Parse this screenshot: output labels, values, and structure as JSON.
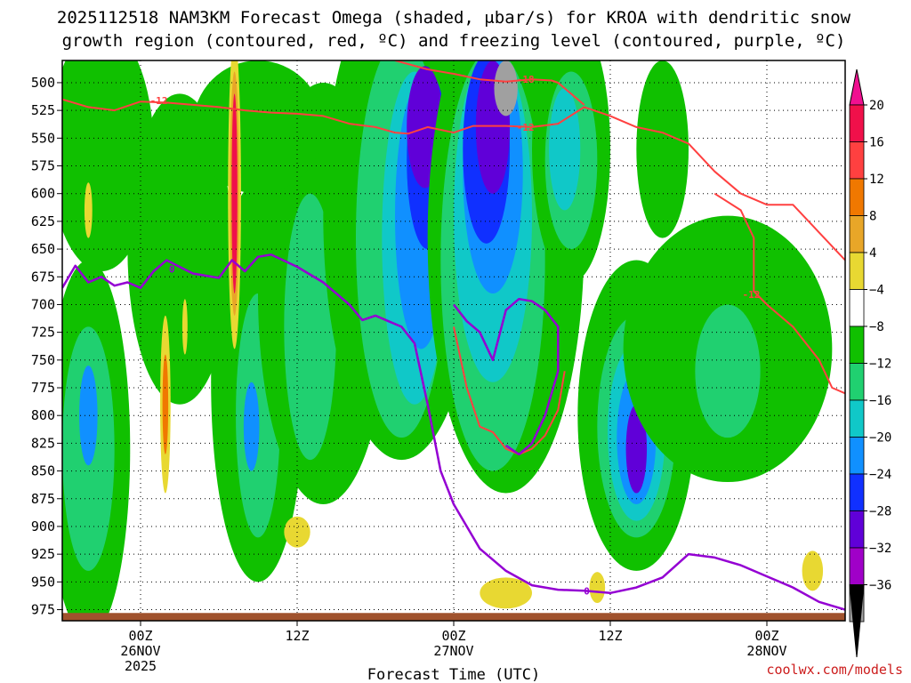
{
  "chart_data": {
    "type": "heatmap",
    "title_lines": [
      "2025112518 NAM3KM Forecast Omega (shaded, μbar/s) for KROA with dendritic snow",
      "growth region (contoured, red, ºC) and freezing level (contoured, purple, ºC)"
    ],
    "xlabel": "Forecast Time (UTC)",
    "credit": "coolwx.com/models",
    "x_ticks": [
      {
        "hour": 0,
        "lines": [
          "00Z",
          "26NOV",
          "2025"
        ]
      },
      {
        "hour": 12,
        "lines": [
          "12Z"
        ]
      },
      {
        "hour": 24,
        "lines": [
          "00Z",
          "27NOV"
        ]
      },
      {
        "hour": 36,
        "lines": [
          "12Z"
        ]
      },
      {
        "hour": 48,
        "lines": [
          "00Z",
          "28NOV"
        ]
      }
    ],
    "xlim_hours": [
      -6,
      54
    ],
    "y_levels": [
      500,
      525,
      550,
      575,
      600,
      625,
      650,
      675,
      700,
      725,
      750,
      775,
      800,
      825,
      850,
      875,
      900,
      925,
      950,
      975
    ],
    "ylim_hpa": [
      480,
      985
    ],
    "colorbar": {
      "labels": [
        "20",
        "16",
        "12",
        "8",
        "4",
        "−4",
        "−8",
        "−12",
        "−16",
        "−20",
        "−24",
        "−28",
        "−32",
        "−36"
      ],
      "colors": [
        "#f0104a",
        "#ff4040",
        "#f07800",
        "#e8a628",
        "#e8d832",
        "#ffffff",
        "#10c000",
        "#20d070",
        "#10c8c8",
        "#1090ff",
        "#1030ff",
        "#6000d8",
        "#a000c8",
        "#a0a0a0"
      ],
      "top_arrow_color": "#f01090",
      "bottom_arrow_color": "#000000"
    },
    "omega_regions": [
      {
        "level": -8,
        "hour": 3,
        "p": 650,
        "dh": 4,
        "dp": 140
      },
      {
        "level": -8,
        "hour": -3,
        "p": 560,
        "dh": 4,
        "dp": 110
      },
      {
        "level": -8,
        "hour": -4,
        "p": 830,
        "dh": 3.2,
        "dp": 170
      },
      {
        "level": -12,
        "hour": -4,
        "p": 830,
        "dh": 2,
        "dp": 110
      },
      {
        "level": -20,
        "hour": -4,
        "p": 800,
        "dh": 0.7,
        "dp": 45
      },
      {
        "level": -8,
        "hour": 9,
        "p": 770,
        "dh": 3.6,
        "dp": 180
      },
      {
        "level": -12,
        "hour": 9,
        "p": 800,
        "dh": 1.7,
        "dp": 110
      },
      {
        "level": -20,
        "hour": 8.5,
        "p": 810,
        "dh": 0.6,
        "dp": 40
      },
      {
        "level": -8,
        "hour": 14,
        "p": 690,
        "dh": 5,
        "dp": 190
      },
      {
        "level": -12,
        "hour": 13,
        "p": 720,
        "dh": 2,
        "dp": 120
      },
      {
        "level": -8,
        "hour": 9,
        "p": 540,
        "dh": 5,
        "dp": 60
      },
      {
        "level": -8,
        "hour": 20,
        "p": 620,
        "dh": 6,
        "dp": 220
      },
      {
        "level": -12,
        "hour": 20,
        "p": 640,
        "dh": 3.5,
        "dp": 180
      },
      {
        "level": -16,
        "hour": 21,
        "p": 640,
        "dh": 2.5,
        "dp": 150
      },
      {
        "level": -20,
        "hour": 21.5,
        "p": 620,
        "dh": 2,
        "dp": 120
      },
      {
        "level": -24,
        "hour": 22,
        "p": 570,
        "dh": 1.6,
        "dp": 80
      },
      {
        "level": -28,
        "hour": 21.8,
        "p": 540,
        "dh": 1.4,
        "dp": 55
      },
      {
        "level": -8,
        "hour": 28,
        "p": 640,
        "dh": 6,
        "dp": 230
      },
      {
        "level": -12,
        "hour": 27,
        "p": 660,
        "dh": 4,
        "dp": 190
      },
      {
        "level": -16,
        "hour": 27,
        "p": 620,
        "dh": 3,
        "dp": 150
      },
      {
        "level": -20,
        "hour": 27,
        "p": 580,
        "dh": 2.3,
        "dp": 110
      },
      {
        "level": -24,
        "hour": 26.5,
        "p": 560,
        "dh": 1.8,
        "dp": 85
      },
      {
        "level": -28,
        "hour": 27,
        "p": 540,
        "dh": 1.3,
        "dp": 60
      },
      {
        "level": -32,
        "hour": 28,
        "p": 505,
        "dh": 0.9,
        "dp": 25
      },
      {
        "level": -8,
        "hour": 33,
        "p": 560,
        "dh": 3,
        "dp": 120
      },
      {
        "level": -12,
        "hour": 33,
        "p": 570,
        "dh": 2,
        "dp": 80
      },
      {
        "level": -16,
        "hour": 32.5,
        "p": 560,
        "dh": 1.2,
        "dp": 55
      },
      {
        "level": -8,
        "hour": 38,
        "p": 800,
        "dh": 4.5,
        "dp": 140
      },
      {
        "level": -12,
        "hour": 38,
        "p": 810,
        "dh": 3,
        "dp": 100
      },
      {
        "level": -16,
        "hour": 38,
        "p": 815,
        "dh": 2.2,
        "dp": 80
      },
      {
        "level": -20,
        "hour": 38,
        "p": 820,
        "dh": 1.5,
        "dp": 60
      },
      {
        "level": -28,
        "hour": 38,
        "p": 830,
        "dh": 0.8,
        "dp": 40
      },
      {
        "level": -8,
        "hour": 45,
        "p": 740,
        "dh": 8,
        "dp": 120
      },
      {
        "level": -12,
        "hour": 45,
        "p": 760,
        "dh": 2.5,
        "dp": 60
      },
      {
        "level": -8,
        "hour": 40,
        "p": 560,
        "dh": 2,
        "dp": 80
      }
    ],
    "omega_positive_regions": [
      {
        "level": 4,
        "hour": 7.2,
        "p": 600,
        "dh": 0.5,
        "dp": 140
      },
      {
        "level": 8,
        "hour": 7.2,
        "p": 600,
        "dh": 0.35,
        "dp": 110
      },
      {
        "level": 16,
        "hour": 7.2,
        "p": 600,
        "dh": 0.22,
        "dp": 90
      },
      {
        "level": 4,
        "hour": 1.9,
        "p": 790,
        "dh": 0.4,
        "dp": 80
      },
      {
        "level": 12,
        "hour": 1.9,
        "p": 790,
        "dh": 0.22,
        "dp": 45
      },
      {
        "level": 4,
        "hour": 3.4,
        "p": 720,
        "dh": 0.2,
        "dp": 25
      },
      {
        "level": 4,
        "hour": -4,
        "p": 615,
        "dh": 0.3,
        "dp": 25
      },
      {
        "level": 4,
        "hour": 12,
        "p": 905,
        "dh": 1,
        "dp": 14
      },
      {
        "level": 4,
        "hour": 28,
        "p": 960,
        "dh": 2,
        "dp": 14
      },
      {
        "level": 4,
        "hour": 35,
        "p": 955,
        "dh": 0.6,
        "dp": 14
      },
      {
        "level": 4,
        "hour": 51.5,
        "p": 940,
        "dh": 0.8,
        "dp": 18
      }
    ],
    "dgz_minus12_upper": [
      [
        -6,
        515
      ],
      [
        -4,
        522
      ],
      [
        -2,
        525
      ],
      [
        0,
        517
      ],
      [
        2,
        518
      ],
      [
        4,
        520
      ],
      [
        6,
        522
      ],
      [
        8,
        525
      ],
      [
        10,
        527
      ],
      [
        12,
        528
      ],
      [
        14,
        530
      ],
      [
        16,
        537
      ],
      [
        18,
        540
      ],
      [
        19.5,
        545
      ],
      [
        20.5,
        546
      ],
      [
        22,
        540
      ],
      [
        24,
        545
      ],
      [
        25.5,
        539
      ],
      [
        28,
        539
      ],
      [
        30,
        540
      ],
      [
        32,
        537
      ],
      [
        34,
        522
      ],
      [
        36,
        530
      ],
      [
        38,
        540
      ],
      [
        40,
        545
      ],
      [
        42,
        555
      ],
      [
        44,
        580
      ],
      [
        46,
        600
      ],
      [
        48,
        610
      ],
      [
        50,
        610
      ],
      [
        52,
        635
      ],
      [
        54,
        660
      ]
    ],
    "dgz_minus18": [
      [
        19.5,
        480
      ],
      [
        22,
        488
      ],
      [
        24,
        492
      ],
      [
        26,
        497
      ],
      [
        28,
        499
      ],
      [
        30,
        497
      ],
      [
        31.5,
        498
      ],
      [
        32,
        500
      ],
      [
        34,
        520
      ]
    ],
    "dgz_minus12_lower": [
      [
        44,
        600
      ],
      [
        46,
        615
      ],
      [
        47,
        640
      ],
      [
        47,
        688
      ],
      [
        48,
        700
      ],
      [
        50,
        720
      ],
      [
        52,
        750
      ],
      [
        53,
        775
      ],
      [
        54,
        780
      ]
    ],
    "dgz_minus12_loop": [
      [
        24,
        720
      ],
      [
        25,
        775
      ],
      [
        26,
        810
      ],
      [
        27,
        815
      ],
      [
        28,
        830
      ],
      [
        29,
        835
      ],
      [
        30,
        830
      ],
      [
        31,
        818
      ],
      [
        32,
        795
      ],
      [
        32.5,
        760
      ]
    ],
    "freezing_level": [
      [
        -6,
        685
      ],
      [
        -5,
        665
      ],
      [
        -4,
        680
      ],
      [
        -3,
        675
      ],
      [
        -2,
        683
      ],
      [
        -1,
        680
      ],
      [
        0,
        685
      ],
      [
        1,
        670
      ],
      [
        2,
        660
      ],
      [
        4,
        672
      ],
      [
        6,
        676
      ],
      [
        7,
        660
      ],
      [
        8,
        670
      ],
      [
        9,
        657
      ],
      [
        10,
        655
      ],
      [
        12,
        666
      ],
      [
        14,
        680
      ],
      [
        16,
        700
      ],
      [
        17,
        714
      ],
      [
        18,
        710
      ],
      [
        19,
        715
      ],
      [
        20,
        720
      ],
      [
        21,
        735
      ],
      [
        22,
        790
      ],
      [
        23,
        850
      ],
      [
        24,
        880
      ],
      [
        25,
        900
      ],
      [
        26,
        920
      ],
      [
        28,
        940
      ],
      [
        30,
        953
      ],
      [
        32,
        957
      ],
      [
        34,
        958
      ],
      [
        36,
        960
      ],
      [
        38,
        955
      ],
      [
        40,
        946
      ],
      [
        42,
        925
      ],
      [
        44,
        928
      ],
      [
        46,
        935
      ],
      [
        48,
        945
      ],
      [
        50,
        955
      ],
      [
        52,
        968
      ],
      [
        54,
        975
      ]
    ],
    "freezing_loop": [
      [
        24,
        700
      ],
      [
        25,
        715
      ],
      [
        26,
        725
      ],
      [
        27,
        750
      ],
      [
        28,
        705
      ],
      [
        29,
        695
      ],
      [
        30,
        697
      ],
      [
        31,
        705
      ],
      [
        32,
        720
      ],
      [
        32,
        760
      ],
      [
        31,
        800
      ],
      [
        30,
        825
      ],
      [
        29,
        835
      ],
      [
        28,
        827
      ]
    ],
    "contour_labels": [
      {
        "text": "-12",
        "hour": 1.4,
        "p": 516,
        "color": "#ff4040"
      },
      {
        "text": "-12",
        "hour": 29.5,
        "p": 540,
        "color": "#ff4040"
      },
      {
        "text": "-18",
        "hour": 29.5,
        "p": 497,
        "color": "#ff4040"
      },
      {
        "text": "-12",
        "hour": 46.8,
        "p": 691,
        "color": "#ff4040"
      },
      {
        "text": "0",
        "hour": 2.4,
        "p": 668,
        "color": "#9400d3"
      },
      {
        "text": "0",
        "hour": 34.2,
        "p": 958,
        "color": "#9400d3"
      }
    ],
    "terrain_color": "#a0522d"
  }
}
